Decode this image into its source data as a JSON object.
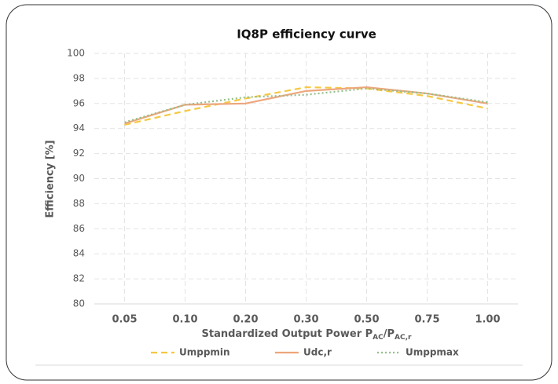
{
  "chart_data": {
    "type": "line",
    "title": "IQ8P efficiency curve",
    "y_label": "Efficiency [%]",
    "x_label": [
      "Standardized Output Power P",
      "AC",
      "/P",
      "AC,r"
    ],
    "categories": [
      "0.05",
      "0.10",
      "0.20",
      "0.30",
      "0.50",
      "0.75",
      "1.00"
    ],
    "series": [
      {
        "name": "Umppmin",
        "color": "#f5c842",
        "dash": "dashed",
        "values": [
          94.3,
          95.4,
          96.4,
          97.3,
          97.2,
          96.6,
          95.6
        ]
      },
      {
        "name": "Udc,r",
        "color": "#eda67c",
        "dash": "solid",
        "values": [
          94.4,
          95.9,
          96.0,
          97.0,
          97.3,
          96.8,
          96.0
        ]
      },
      {
        "name": "Umppmax",
        "color": "#93c08a",
        "dash": "dotted",
        "values": [
          94.5,
          95.9,
          96.5,
          96.7,
          97.2,
          96.8,
          96.1
        ]
      }
    ],
    "ylim": [
      80,
      100
    ],
    "yticks": [
      80,
      82,
      84,
      86,
      88,
      90,
      92,
      94,
      96,
      98,
      100
    ],
    "grid": true,
    "legend": "bottom"
  }
}
